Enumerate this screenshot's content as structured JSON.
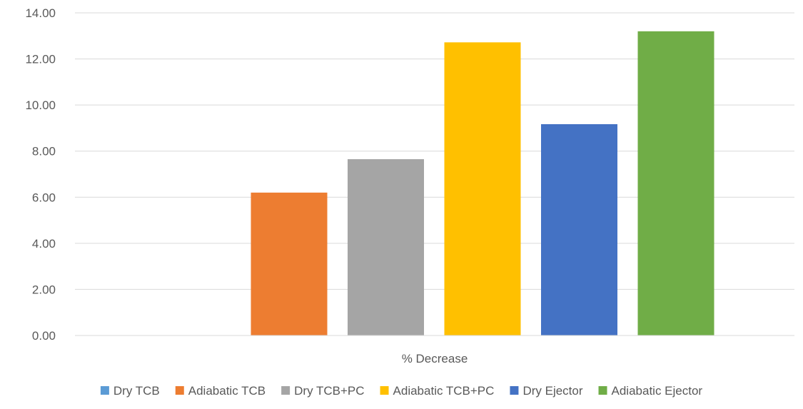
{
  "chart_data": {
    "type": "bar",
    "title": "",
    "xlabel": "% Decrease",
    "ylabel": "",
    "ylim": [
      0,
      14
    ],
    "ytick_step": 2,
    "ytick_decimals": 2,
    "grid": true,
    "legend_position": "bottom",
    "categories": [
      "% Decrease"
    ],
    "series": [
      {
        "name": "Dry TCB",
        "color": "#5B9BD5",
        "values": [
          0.0
        ]
      },
      {
        "name": "Adiabatic TCB",
        "color": "#ED7D31",
        "values": [
          6.2
        ]
      },
      {
        "name": "Dry TCB+PC",
        "color": "#A5A5A5",
        "values": [
          7.65
        ]
      },
      {
        "name": "Adiabatic TCB+PC",
        "color": "#FFC000",
        "values": [
          12.72
        ]
      },
      {
        "name": "Dry Ejector",
        "color": "#4472C4",
        "values": [
          9.17
        ]
      },
      {
        "name": "Adiabatic Ejector",
        "color": "#70AD47",
        "values": [
          13.2
        ]
      }
    ]
  }
}
